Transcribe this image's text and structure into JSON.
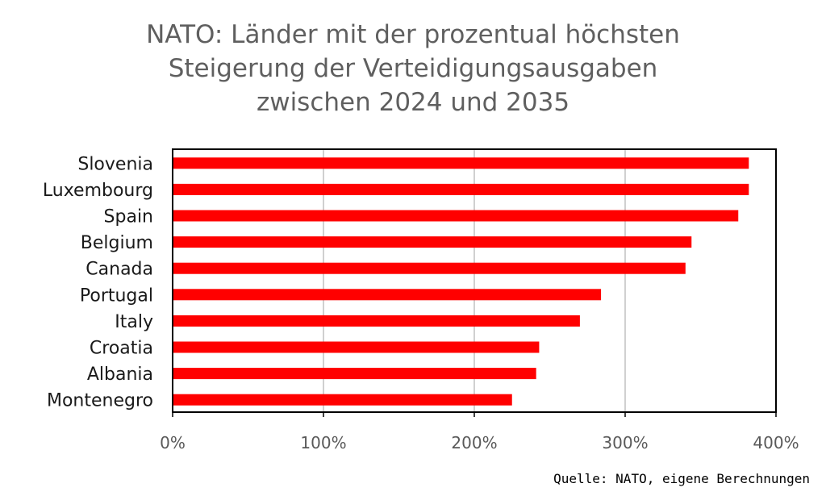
{
  "chart_data": {
    "type": "bar",
    "orientation": "horizontal",
    "title_lines": [
      "NATO: Länder mit der prozentual höchsten",
      "Steigerung der Verteidigungsausgaben",
      "zwischen 2024 und 2035"
    ],
    "categories": [
      "Slovenia",
      "Luxembourg",
      "Spain",
      "Belgium",
      "Canada",
      "Portugal",
      "Italy",
      "Croatia",
      "Albania",
      "Montenegro"
    ],
    "values": [
      382,
      382,
      375,
      344,
      340,
      284,
      270,
      243,
      241,
      225
    ],
    "value_unit": "%",
    "xlim": [
      0,
      400
    ],
    "ticks": [
      0,
      100,
      200,
      300,
      400
    ],
    "tick_labels": [
      "0%",
      "100%",
      "200%",
      "300%",
      "400%"
    ],
    "bar_color": "#ff0000",
    "grid": "vertical",
    "legend": "none"
  },
  "source": "Quelle: NATO, eigene Berechnungen"
}
